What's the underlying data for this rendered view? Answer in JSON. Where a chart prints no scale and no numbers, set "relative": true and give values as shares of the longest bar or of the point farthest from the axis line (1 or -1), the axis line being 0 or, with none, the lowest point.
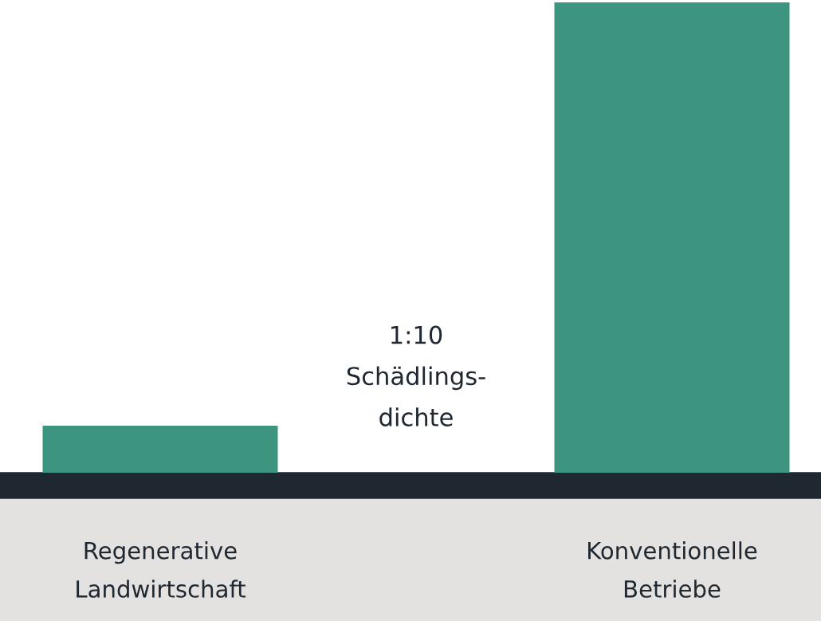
{
  "chart_data": {
    "type": "bar",
    "relative": true,
    "categories": [
      "Regenerative\nLandwirtschaft",
      "Konventionelle\nBetriebe"
    ],
    "values": [
      0.1,
      1
    ],
    "color": "#3d9580",
    "annotations": [
      "1:10\nSchädlings-\ndichte"
    ],
    "grid": false,
    "legend": false
  }
}
